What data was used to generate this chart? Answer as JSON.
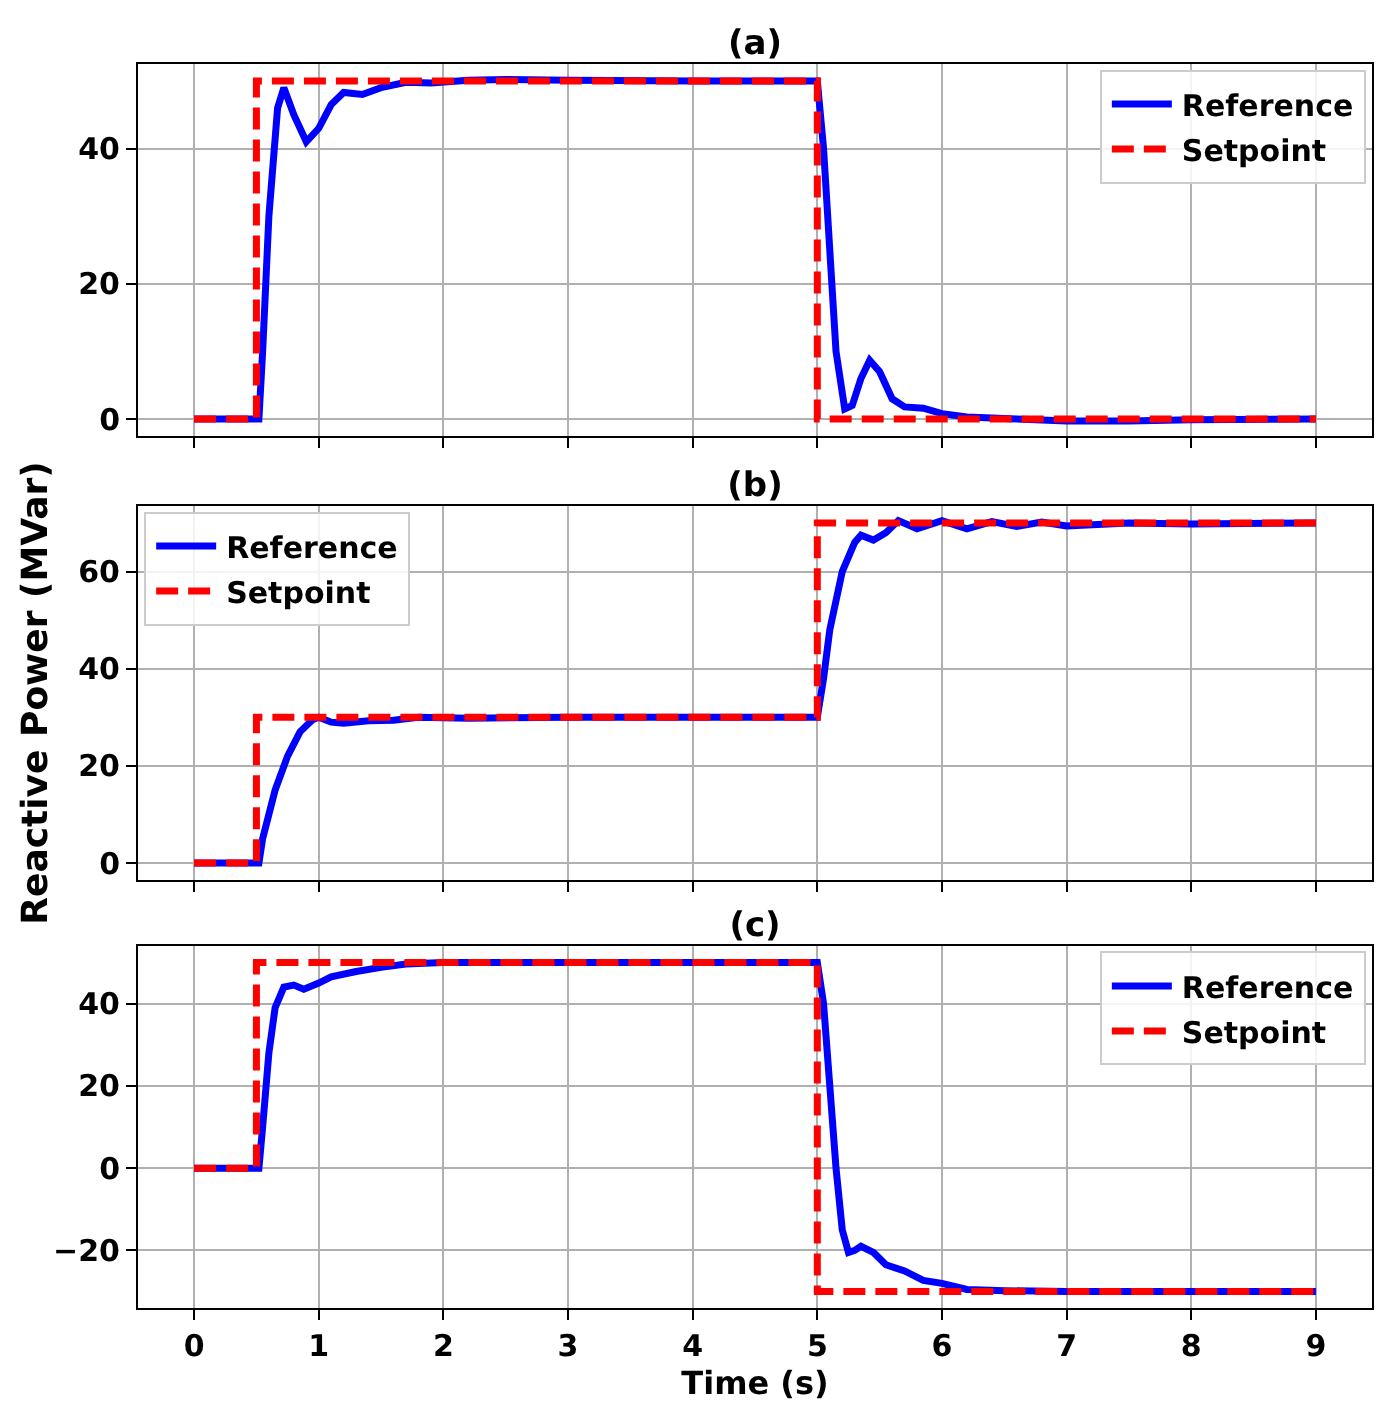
{
  "chart_data": [
    {
      "type": "line",
      "title": "(a)",
      "xlim": [
        -0.45,
        9.45
      ],
      "xticks": [
        0,
        1,
        2,
        3,
        4,
        5,
        6,
        7,
        8,
        9
      ],
      "ylim": [
        -2.5,
        52.5
      ],
      "yticks": [
        0,
        20,
        40
      ],
      "grid": true,
      "legend": "top right",
      "tick_labels": "y",
      "series": [
        {
          "name": "Reference",
          "color": "#0000ff",
          "line_style": "solid",
          "x": [
            0,
            0.52,
            0.55,
            0.6,
            0.67,
            0.72,
            0.8,
            0.9,
            1.0,
            1.1,
            1.2,
            1.35,
            1.5,
            1.7,
            1.9,
            2.2,
            2.5,
            3,
            4,
            5.0,
            5.05,
            5.1,
            5.15,
            5.22,
            5.28,
            5.35,
            5.42,
            5.5,
            5.6,
            5.7,
            5.85,
            6.0,
            6.2,
            6.6,
            7,
            7.5,
            8,
            9
          ],
          "values": [
            0,
            0,
            10,
            30,
            46,
            49,
            45,
            41,
            43,
            46.5,
            48.3,
            48,
            49,
            49.8,
            49.7,
            50.1,
            50.2,
            50.1,
            50,
            50,
            40,
            25,
            10,
            1.5,
            2,
            6,
            8.7,
            7,
            3,
            1.8,
            1.6,
            0.8,
            0.3,
            0,
            -0.3,
            -0.3,
            -0.1,
            0
          ]
        },
        {
          "name": "Setpoint",
          "color": "#ff0000",
          "line_style": "dashed",
          "x": [
            0,
            0.5,
            0.5,
            5,
            5,
            9
          ],
          "values": [
            0,
            0,
            50,
            50,
            0,
            0
          ]
        }
      ]
    },
    {
      "type": "line",
      "title": "(b)",
      "ylabel": "Reactive Power (MVar)",
      "xlim": [
        -0.45,
        9.45
      ],
      "xticks": [
        0,
        1,
        2,
        3,
        4,
        5,
        6,
        7,
        8,
        9
      ],
      "ylim": [
        -3.5,
        73.5
      ],
      "yticks": [
        0,
        20,
        40,
        60
      ],
      "grid": true,
      "legend": "top left",
      "tick_labels": "y",
      "series": [
        {
          "name": "Reference",
          "color": "#0000ff",
          "line_style": "solid",
          "x": [
            0,
            0.52,
            0.55,
            0.65,
            0.75,
            0.85,
            0.95,
            1.0,
            1.1,
            1.2,
            1.4,
            1.6,
            1.8,
            2.2,
            3,
            4,
            5.0,
            5.05,
            5.1,
            5.2,
            5.3,
            5.35,
            5.45,
            5.55,
            5.65,
            5.8,
            6.0,
            6.2,
            6.4,
            6.6,
            6.8,
            7.0,
            7.5,
            8,
            9
          ],
          "values": [
            0,
            0,
            5,
            15,
            22,
            27,
            29.5,
            30,
            29,
            28.8,
            29.3,
            29.4,
            30,
            29.8,
            30,
            30,
            30,
            38,
            48,
            60,
            66,
            67.5,
            66.5,
            68,
            70.5,
            68.8,
            70.5,
            68.8,
            70.3,
            69.3,
            70.2,
            69.4,
            70,
            69.8,
            70
          ]
        },
        {
          "name": "Setpoint",
          "color": "#ff0000",
          "line_style": "dashed",
          "x": [
            0,
            0.5,
            0.5,
            5,
            5,
            9
          ],
          "values": [
            0,
            0,
            30,
            30,
            70,
            70
          ]
        }
      ]
    },
    {
      "type": "line",
      "title": "(c)",
      "xlabel": "Time (s)",
      "xlim": [
        -0.45,
        9.45
      ],
      "xticks": [
        0,
        1,
        2,
        3,
        4,
        5,
        6,
        7,
        8,
        9
      ],
      "ylim": [
        -34,
        54
      ],
      "yticks": [
        -20,
        0,
        20,
        40
      ],
      "grid": true,
      "legend": "top right",
      "series": [
        {
          "name": "Reference",
          "color": "#0000ff",
          "line_style": "solid",
          "x": [
            0,
            0.52,
            0.55,
            0.6,
            0.65,
            0.72,
            0.8,
            0.88,
            1.0,
            1.1,
            1.3,
            1.5,
            1.7,
            2,
            3,
            5,
            5.05,
            5.1,
            5.15,
            5.2,
            5.25,
            5.3,
            5.35,
            5.45,
            5.55,
            5.7,
            5.85,
            6.0,
            6.2,
            6.5,
            7,
            9
          ],
          "values": [
            0,
            0,
            10,
            28,
            39,
            44,
            44.5,
            43.5,
            45,
            46.5,
            47.8,
            48.8,
            49.6,
            50,
            50,
            50,
            40,
            20,
            0,
            -15,
            -20.5,
            -20,
            -19,
            -20.5,
            -23.5,
            -25,
            -27.3,
            -28,
            -29.5,
            -29.8,
            -30,
            -30
          ]
        },
        {
          "name": "Setpoint",
          "color": "#ff0000",
          "line_style": "dashed",
          "x": [
            0,
            0.5,
            0.5,
            5,
            5,
            9
          ],
          "values": [
            0,
            0,
            50,
            50,
            -30,
            -30
          ]
        }
      ]
    }
  ]
}
